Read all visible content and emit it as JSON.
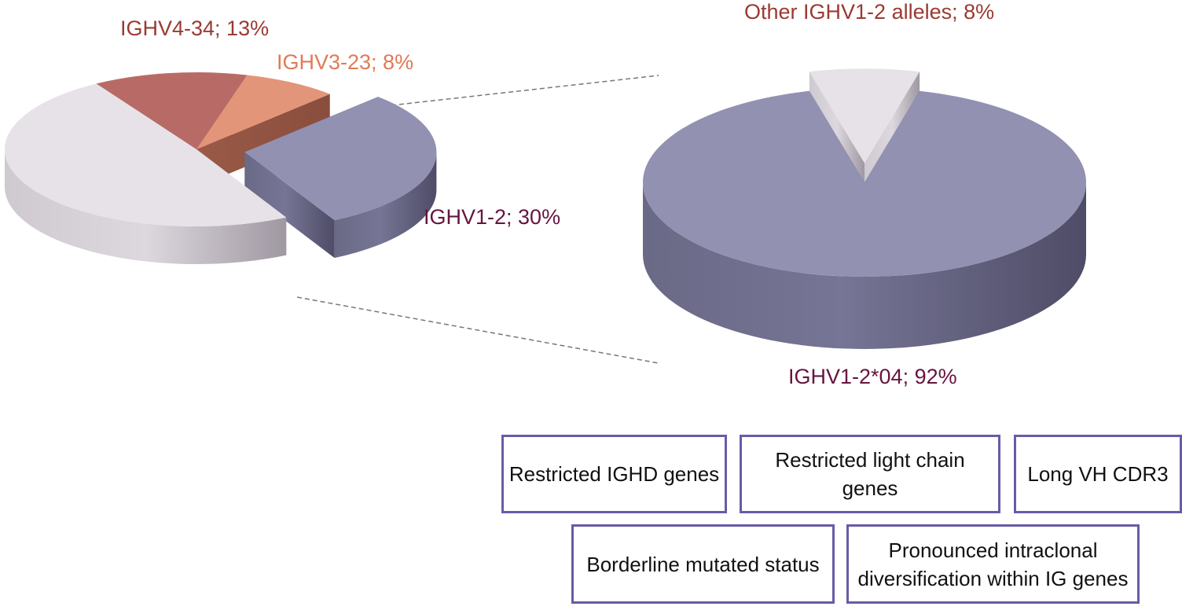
{
  "chart_data": [
    {
      "type": "pie",
      "title": "",
      "slices": [
        {
          "label": "IGHV4-34; 13%",
          "value": 13,
          "color": "#b86b66"
        },
        {
          "label": "IGHV3-23; 8%",
          "value": 8,
          "color": "#e3957a"
        },
        {
          "label": "IGHV1-2; 30%",
          "value": 30,
          "color": "#9291b2"
        },
        {
          "value": 49,
          "color": "#e7e2e8"
        }
      ],
      "label_colors": {
        "IGHV4-34": "#9a3a32",
        "IGHV3-23": "#e07a56",
        "IGHV1-2": "#66153f"
      },
      "exploded": "IGHV1-2; 30%",
      "style": "3d"
    },
    {
      "type": "pie",
      "title": "",
      "slices": [
        {
          "label": "IGHV1-2*04; 92%",
          "value": 92,
          "color": "#9291b2"
        },
        {
          "label": "Other IGHV1-2 alleles; 8%",
          "value": 8,
          "color": "#e7e2e8"
        }
      ],
      "label_colors": {
        "IGHV1-2*04": "#66153f",
        "Other IGHV1-2 alleles": "#9a3a32"
      },
      "exploded": "Other IGHV1-2 alleles; 8%",
      "style": "3d"
    }
  ],
  "features": [
    "Restricted IGHD genes",
    "Restricted light chain genes",
    "Long VH CDR3",
    "Borderline mutated status",
    "Pronounced intraclonal diversification within IG genes"
  ]
}
